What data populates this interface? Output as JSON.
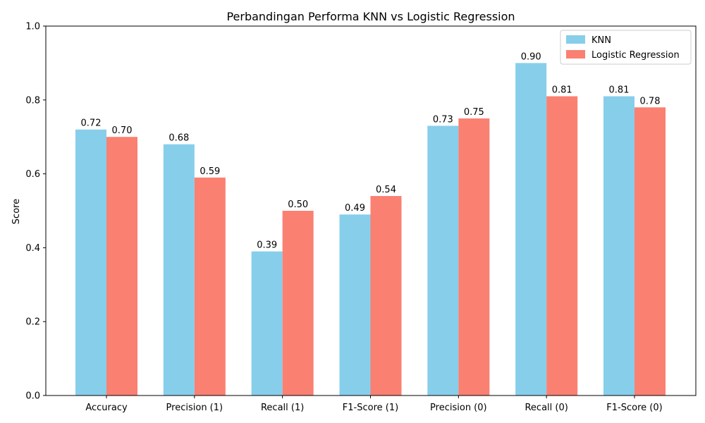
{
  "chart_data": {
    "type": "bar",
    "title": "Perbandingan Performa KNN vs Logistic Regression",
    "xlabel": "",
    "ylabel": "Score",
    "ylim": [
      0,
      1.0
    ],
    "yticks": [
      "0.0",
      "0.2",
      "0.4",
      "0.6",
      "0.8",
      "1.0"
    ],
    "categories": [
      "Accuracy",
      "Precision (1)",
      "Recall (1)",
      "F1-Score (1)",
      "Precision (0)",
      "Recall (0)",
      "F1-Score (0)"
    ],
    "series": [
      {
        "name": "KNN",
        "color": "#87ceeb",
        "values": [
          0.72,
          0.68,
          0.39,
          0.49,
          0.73,
          0.9,
          0.81
        ],
        "labels": [
          "0.72",
          "0.68",
          "0.39",
          "0.49",
          "0.73",
          "0.90",
          "0.81"
        ]
      },
      {
        "name": "Logistic Regression",
        "color": "#fa8072",
        "values": [
          0.7,
          0.59,
          0.5,
          0.54,
          0.75,
          0.81,
          0.78
        ],
        "labels": [
          "0.70",
          "0.59",
          "0.50",
          "0.54",
          "0.75",
          "0.81",
          "0.78"
        ]
      }
    ],
    "legend_position": "top-right",
    "grid": false
  }
}
